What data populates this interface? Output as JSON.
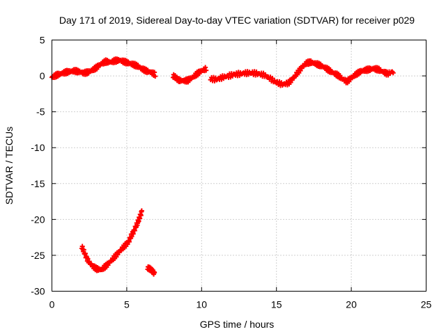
{
  "chart_data": {
    "type": "scatter",
    "title": "Day 171 of 2019, Sidereal Day-to-day VTEC variation (SDTVAR) for receiver p029",
    "xlabel": "GPS time / hours",
    "ylabel": "SDTVAR / TECUs",
    "xlim": [
      0,
      25
    ],
    "ylim": [
      -30,
      5
    ],
    "xticks": [
      0,
      5,
      10,
      15,
      20,
      25
    ],
    "yticks": [
      5,
      0,
      -5,
      -10,
      -15,
      -20,
      -25,
      -30
    ],
    "grid": true,
    "marker": "plus",
    "color": "#ff0000",
    "series": [
      {
        "name": "segment-1",
        "points": [
          [
            0.0,
            -0.2
          ],
          [
            0.3,
            0.1
          ],
          [
            0.6,
            0.3
          ],
          [
            0.9,
            0.5
          ],
          [
            1.2,
            0.6
          ],
          [
            1.5,
            0.7
          ],
          [
            1.8,
            0.6
          ],
          [
            2.1,
            0.4
          ],
          [
            2.4,
            0.5
          ],
          [
            2.7,
            0.8
          ],
          [
            3.0,
            1.2
          ],
          [
            3.3,
            1.7
          ],
          [
            3.6,
            2.0
          ],
          [
            3.9,
            1.9
          ],
          [
            4.2,
            2.1
          ],
          [
            4.5,
            2.2
          ],
          [
            4.8,
            2.0
          ],
          [
            5.1,
            1.8
          ],
          [
            5.4,
            1.6
          ],
          [
            5.7,
            1.4
          ],
          [
            6.0,
            1.0
          ],
          [
            6.3,
            0.7
          ],
          [
            6.6,
            0.5
          ],
          [
            6.9,
            0.2
          ]
        ]
      },
      {
        "name": "segment-2",
        "points": [
          [
            8.1,
            0.0
          ],
          [
            8.3,
            -0.3
          ],
          [
            8.5,
            -0.6
          ],
          [
            8.8,
            -0.7
          ],
          [
            9.1,
            -0.6
          ],
          [
            9.4,
            -0.2
          ],
          [
            9.7,
            0.3
          ],
          [
            10.0,
            0.7
          ],
          [
            10.3,
            1.0
          ]
        ]
      },
      {
        "name": "segment-3",
        "points": [
          [
            10.6,
            -0.4
          ],
          [
            11.0,
            -0.5
          ],
          [
            11.4,
            -0.2
          ],
          [
            11.8,
            0.0
          ],
          [
            12.2,
            0.2
          ],
          [
            12.6,
            0.3
          ],
          [
            13.0,
            0.4
          ],
          [
            13.4,
            0.4
          ],
          [
            13.8,
            0.3
          ],
          [
            14.2,
            0.1
          ],
          [
            14.6,
            -0.4
          ],
          [
            15.0,
            -0.9
          ],
          [
            15.4,
            -1.2
          ],
          [
            15.8,
            -1.0
          ],
          [
            16.1,
            -0.4
          ],
          [
            16.4,
            0.4
          ],
          [
            16.7,
            1.2
          ],
          [
            17.0,
            1.8
          ],
          [
            17.3,
            1.9
          ],
          [
            17.6,
            1.7
          ],
          [
            17.9,
            1.5
          ],
          [
            18.2,
            1.2
          ],
          [
            18.5,
            0.8
          ],
          [
            18.8,
            0.4
          ],
          [
            19.1,
            0.1
          ],
          [
            19.4,
            -0.4
          ],
          [
            19.7,
            -0.8
          ],
          [
            20.0,
            -0.3
          ],
          [
            20.3,
            0.2
          ],
          [
            20.6,
            0.6
          ],
          [
            20.9,
            0.8
          ],
          [
            21.2,
            0.9
          ],
          [
            21.5,
            1.0
          ],
          [
            21.8,
            0.9
          ],
          [
            22.1,
            0.6
          ],
          [
            22.4,
            0.3
          ],
          [
            22.8,
            0.6
          ]
        ]
      },
      {
        "name": "segment-4",
        "points": [
          [
            2.0,
            -23.8
          ],
          [
            2.2,
            -24.8
          ],
          [
            2.4,
            -25.7
          ],
          [
            2.7,
            -26.5
          ],
          [
            3.0,
            -26.9
          ],
          [
            3.3,
            -27.0
          ],
          [
            3.6,
            -26.5
          ],
          [
            3.9,
            -25.9
          ],
          [
            4.2,
            -25.2
          ],
          [
            4.5,
            -24.5
          ],
          [
            4.8,
            -23.8
          ],
          [
            5.1,
            -23.2
          ],
          [
            5.3,
            -22.3
          ],
          [
            5.5,
            -21.5
          ],
          [
            5.7,
            -20.6
          ],
          [
            5.85,
            -19.8
          ],
          [
            6.0,
            -18.9
          ]
        ]
      },
      {
        "name": "segment-5",
        "points": [
          [
            6.4,
            -26.7
          ],
          [
            6.55,
            -26.9
          ],
          [
            6.7,
            -27.2
          ],
          [
            6.85,
            -27.5
          ]
        ]
      }
    ]
  }
}
